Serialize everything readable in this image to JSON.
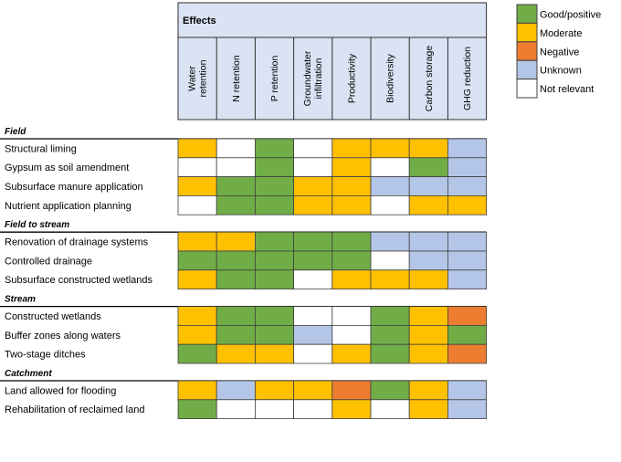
{
  "chart_data": {
    "type": "heatmap",
    "title": "Effects",
    "columns": [
      "Water retention",
      "N retention",
      "P retention",
      "Groundwater infiltration",
      "Productivity",
      "Biodiversity",
      "Carbon storage",
      "GHG reduction"
    ],
    "column_lines": [
      [
        "Water",
        "retention"
      ],
      [
        "N retention"
      ],
      [
        "P retention"
      ],
      [
        "Groundwater",
        "infiltration"
      ],
      [
        "Productivity"
      ],
      [
        "Biodiversity"
      ],
      [
        "Carbon storage"
      ],
      [
        "GHG reduction"
      ]
    ],
    "legend": [
      {
        "key": "good",
        "label": "Good/positive",
        "color": "#70ad47"
      },
      {
        "key": "moderate",
        "label": "Moderate",
        "color": "#ffc000"
      },
      {
        "key": "negative",
        "label": "Negative",
        "color": "#ed7d31"
      },
      {
        "key": "unknown",
        "label": "Unknown",
        "color": "#b4c6e7"
      },
      {
        "key": "notrelevant",
        "label": "Not relevant",
        "color": "#ffffff"
      }
    ],
    "groups": [
      {
        "name": "Field",
        "rows": [
          {
            "label": "Structural liming",
            "values": [
              "moderate",
              "notrelevant",
              "good",
              "notrelevant",
              "moderate",
              "moderate",
              "moderate",
              "unknown"
            ]
          },
          {
            "label": "Gypsum as soil amendment",
            "values": [
              "notrelevant",
              "notrelevant",
              "good",
              "notrelevant",
              "moderate",
              "notrelevant",
              "good",
              "unknown"
            ]
          },
          {
            "label": "Subsurface manure application",
            "values": [
              "moderate",
              "good",
              "good",
              "moderate",
              "moderate",
              "unknown",
              "unknown",
              "unknown"
            ]
          },
          {
            "label": "Nutrient application planning",
            "values": [
              "notrelevant",
              "good",
              "good",
              "moderate",
              "moderate",
              "notrelevant",
              "moderate",
              "moderate"
            ]
          }
        ]
      },
      {
        "name": "Field to stream",
        "rows": [
          {
            "label": "Renovation of drainage systems",
            "values": [
              "moderate",
              "moderate",
              "good",
              "good",
              "good",
              "unknown",
              "unknown",
              "unknown"
            ]
          },
          {
            "label": "Controlled drainage",
            "values": [
              "good",
              "good",
              "good",
              "good",
              "good",
              "notrelevant",
              "unknown",
              "unknown"
            ]
          },
          {
            "label": "Subsurface constructed wetlands",
            "values": [
              "moderate",
              "good",
              "good",
              "notrelevant",
              "moderate",
              "moderate",
              "moderate",
              "unknown"
            ]
          }
        ]
      },
      {
        "name": "Stream",
        "rows": [
          {
            "label": "Constructed wetlands",
            "values": [
              "moderate",
              "good",
              "good",
              "notrelevant",
              "notrelevant",
              "good",
              "moderate",
              "negative"
            ]
          },
          {
            "label": "Buffer zones along waters",
            "values": [
              "moderate",
              "good",
              "good",
              "unknown",
              "notrelevant",
              "good",
              "moderate",
              "good"
            ]
          },
          {
            "label": "Two-stage ditches",
            "values": [
              "good",
              "moderate",
              "moderate",
              "notrelevant",
              "moderate",
              "good",
              "moderate",
              "negative"
            ]
          }
        ]
      },
      {
        "name": "Catchment",
        "rows": [
          {
            "label": "Land allowed for flooding",
            "values": [
              "moderate",
              "unknown",
              "moderate",
              "moderate",
              "negative",
              "good",
              "moderate",
              "unknown"
            ]
          },
          {
            "label": "Rehabilitation of reclaimed land",
            "values": [
              "good",
              "notrelevant",
              "notrelevant",
              "notrelevant",
              "moderate",
              "notrelevant",
              "moderate",
              "unknown"
            ]
          }
        ]
      }
    ]
  }
}
